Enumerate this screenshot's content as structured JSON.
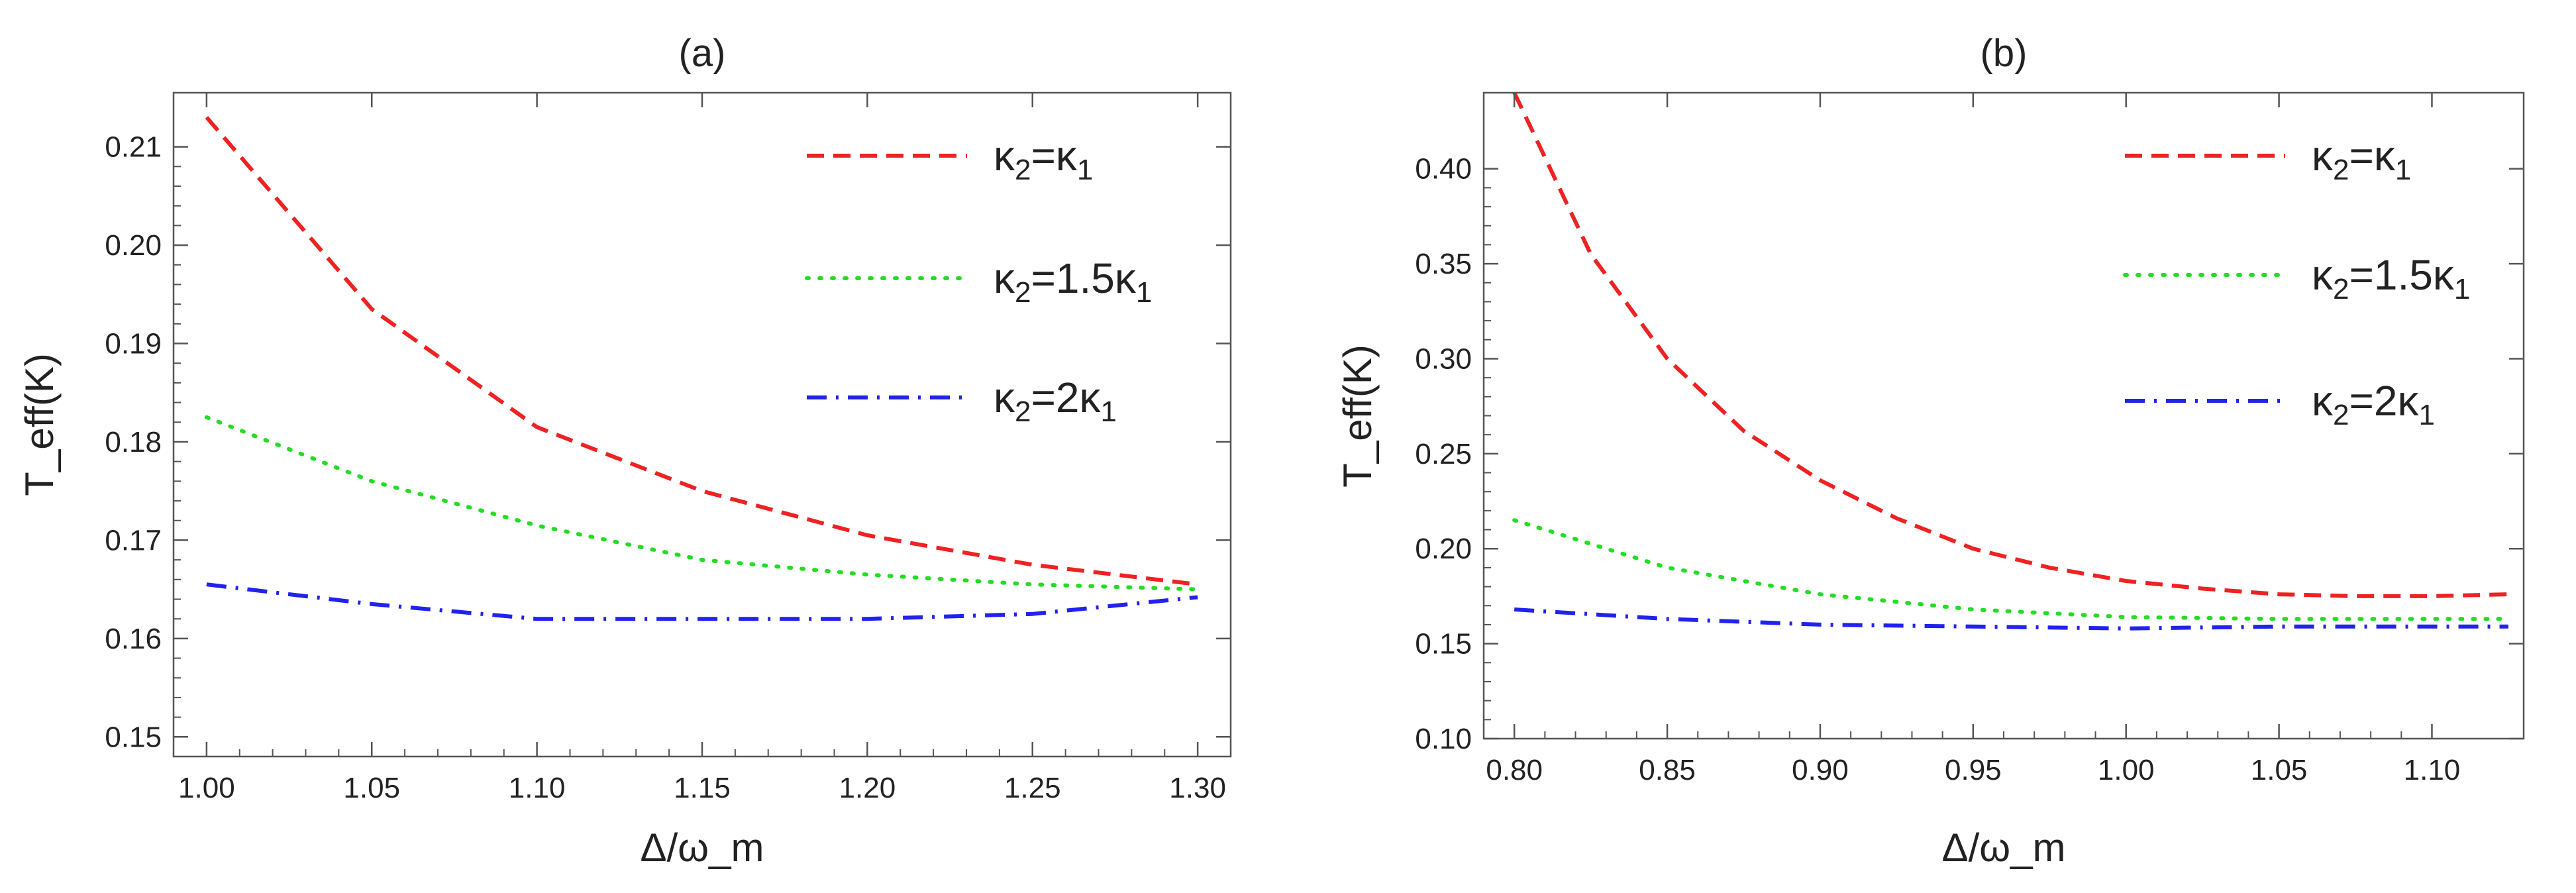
{
  "figure": {
    "description_panels": 2
  },
  "chart_data": [
    {
      "type": "line",
      "title": "(a)",
      "xlabel": "Δ/ω_m",
      "ylabel": "T_eff(K)",
      "xlim": [
        0.99,
        1.31
      ],
      "ylim": [
        0.148,
        0.2155
      ],
      "xticks": [
        1.0,
        1.05,
        1.1,
        1.15,
        1.2,
        1.25,
        1.3
      ],
      "xtick_labels": [
        "1.00",
        "1.05",
        "1.10",
        "1.15",
        "1.20",
        "1.25",
        "1.30"
      ],
      "yticks": [
        0.15,
        0.16,
        0.17,
        0.18,
        0.19,
        0.2,
        0.21
      ],
      "ytick_labels": [
        "0.15",
        "0.16",
        "0.17",
        "0.18",
        "0.19",
        "0.20",
        "0.21"
      ],
      "legend_position": "top-right",
      "series": [
        {
          "name": "κ2=κ1",
          "color": "#ee2222",
          "style": "dashed",
          "x": [
            1.0,
            1.05,
            1.1,
            1.15,
            1.2,
            1.25,
            1.3
          ],
          "values": [
            0.213,
            0.1935,
            0.1815,
            0.175,
            0.1705,
            0.1675,
            0.1655
          ]
        },
        {
          "name": "κ2=1.5κ1",
          "color": "#22dd22",
          "style": "dotted",
          "x": [
            1.0,
            1.05,
            1.1,
            1.15,
            1.2,
            1.25,
            1.3
          ],
          "values": [
            0.1825,
            0.176,
            0.1715,
            0.168,
            0.1665,
            0.1655,
            0.165
          ]
        },
        {
          "name": "κ2=2κ1",
          "color": "#2222ee",
          "style": "dashdot",
          "x": [
            1.0,
            1.05,
            1.1,
            1.15,
            1.2,
            1.25,
            1.3
          ],
          "values": [
            0.1655,
            0.1635,
            0.162,
            0.162,
            0.162,
            0.1625,
            0.1642
          ]
        }
      ],
      "legend": [
        {
          "base": "κ",
          "sub1": "2",
          "mid": "=κ",
          "sub2": "1"
        },
        {
          "base": "κ",
          "sub1": "2",
          "mid": "=1.5κ",
          "sub2": "1"
        },
        {
          "base": "κ",
          "sub1": "2",
          "mid": "=2κ",
          "sub2": "1"
        }
      ]
    },
    {
      "type": "line",
      "title": "(b)",
      "xlabel": "Δ/ω_m",
      "ylabel": "T_eff(K)",
      "xlim": [
        0.79,
        1.13
      ],
      "ylim": [
        0.1,
        0.44
      ],
      "xticks": [
        0.8,
        0.85,
        0.9,
        0.95,
        1.0,
        1.05,
        1.1
      ],
      "xtick_labels": [
        "0.80",
        "0.85",
        "0.90",
        "0.95",
        "1.00",
        "1.05",
        "1.10"
      ],
      "yticks": [
        0.1,
        0.15,
        0.2,
        0.25,
        0.3,
        0.35,
        0.4
      ],
      "ytick_labels": [
        "0.10",
        "0.15",
        "0.20",
        "0.25",
        "0.30",
        "0.35",
        "0.40"
      ],
      "legend_position": "top-right",
      "series": [
        {
          "name": "κ2=κ1",
          "color": "#ee2222",
          "style": "dashed",
          "x": [
            0.8,
            0.825,
            0.85,
            0.875,
            0.9,
            0.925,
            0.95,
            0.975,
            1.0,
            1.025,
            1.05,
            1.075,
            1.1,
            1.125
          ],
          "values": [
            0.44,
            0.355,
            0.3,
            0.262,
            0.236,
            0.216,
            0.2,
            0.19,
            0.183,
            0.179,
            0.176,
            0.175,
            0.175,
            0.176
          ]
        },
        {
          "name": "κ2=1.5κ1",
          "color": "#22dd22",
          "style": "dotted",
          "x": [
            0.8,
            0.85,
            0.9,
            0.95,
            1.0,
            1.05,
            1.1,
            1.125
          ],
          "values": [
            0.215,
            0.19,
            0.176,
            0.168,
            0.164,
            0.163,
            0.163,
            0.163
          ]
        },
        {
          "name": "κ2=2κ1",
          "color": "#2222ee",
          "style": "dashdot",
          "x": [
            0.8,
            0.85,
            0.9,
            0.95,
            1.0,
            1.05,
            1.1,
            1.125
          ],
          "values": [
            0.168,
            0.163,
            0.16,
            0.159,
            0.158,
            0.159,
            0.159,
            0.159
          ]
        }
      ],
      "legend": [
        {
          "base": "κ",
          "sub1": "2",
          "mid": "=κ",
          "sub2": "1"
        },
        {
          "base": "κ",
          "sub1": "2",
          "mid": "=1.5κ",
          "sub2": "1"
        },
        {
          "base": "κ",
          "sub1": "2",
          "mid": "=2κ",
          "sub2": "1"
        }
      ]
    }
  ]
}
